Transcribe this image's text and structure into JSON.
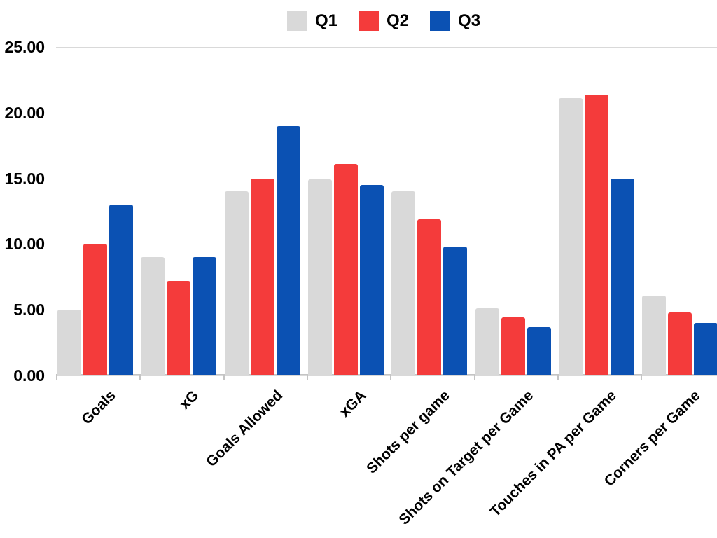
{
  "chart_data": {
    "type": "bar",
    "title": "",
    "xlabel": "",
    "ylabel": "",
    "categories": [
      "Goals",
      "xG",
      "Goals Allowed",
      "xGA",
      "Shots per game",
      "Shots on Target per Game",
      "Touches in PA per Game",
      "Corners per Game"
    ],
    "series": [
      {
        "name": "Q1",
        "color": "#d9d9d9",
        "values": [
          5.0,
          9.0,
          14.0,
          14.9,
          14.0,
          5.1,
          21.1,
          6.1
        ]
      },
      {
        "name": "Q2",
        "color": "#f43b3b",
        "values": [
          10.0,
          7.2,
          15.0,
          16.1,
          11.9,
          4.4,
          21.4,
          4.8
        ]
      },
      {
        "name": "Q3",
        "color": "#0b51b3",
        "values": [
          13.0,
          9.0,
          19.0,
          14.5,
          9.8,
          3.7,
          15.0,
          4.0
        ]
      }
    ],
    "ylim": [
      0,
      25
    ],
    "y_tick_step": 5,
    "y_tick_labels": [
      "25.00",
      "20.00",
      "15.00",
      "10.00",
      "5.00",
      "0.00"
    ],
    "grid": true,
    "legend_position": "top"
  },
  "colors": {
    "background": "#ffffff",
    "gridline": "#d9d9d9",
    "axis": "#c4c4c4",
    "text": "#000000"
  }
}
